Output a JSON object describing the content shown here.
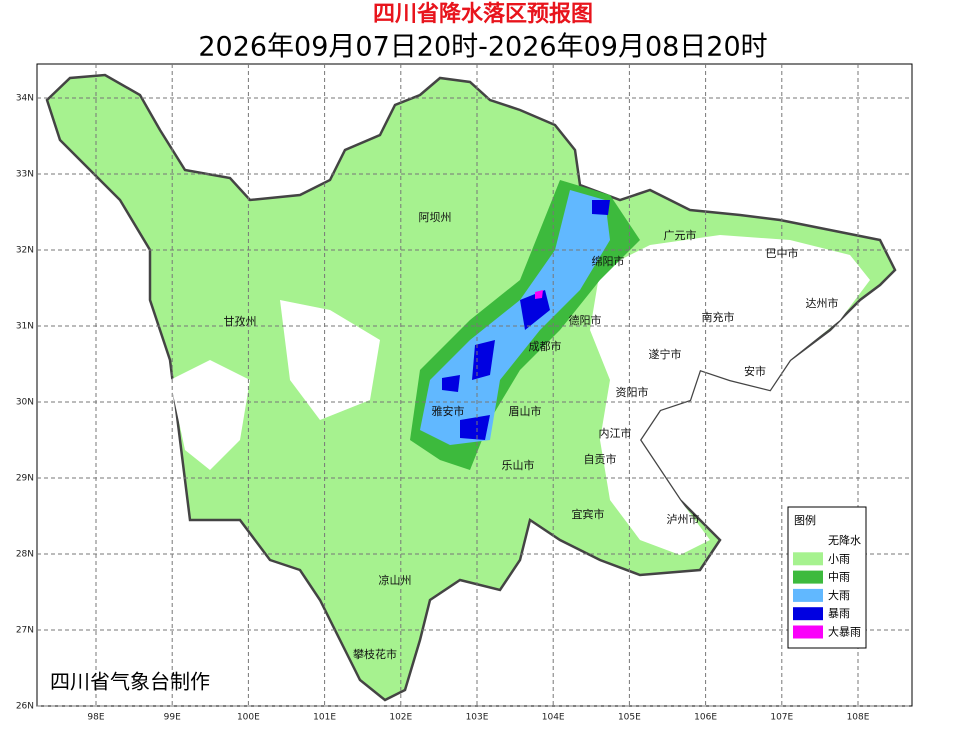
{
  "title": "四川省降水落区预报图",
  "subtitle": "2026年09月07日20时-2026年09月08日20时",
  "x_labels": [
    "98E",
    "99E",
    "100E",
    "101E",
    "102E",
    "103E",
    "104E",
    "105E",
    "106E",
    "107E",
    "108E"
  ],
  "y_labels": [
    "34N",
    "33N",
    "32N",
    "31N",
    "30N",
    "29N",
    "28N",
    "27N",
    "26N"
  ],
  "cities": [
    "阿坝州",
    "广元市",
    "巴中市",
    "绵阳市",
    "达州市",
    "甘孜州",
    "德阳市",
    "南充市",
    "成都市",
    "遂宁市",
    "安市",
    "资阳市",
    "雅安市",
    "眉山市",
    "内江市",
    "自贡市",
    "乐山市",
    "宜宾市",
    "泸州市",
    "凉山州",
    "攀枝花市"
  ],
  "legend": {
    "title": "图例",
    "items": [
      {
        "label": "无降水",
        "color": "#ffffff"
      },
      {
        "label": "小雨",
        "color": "#a6f28f"
      },
      {
        "label": "中雨",
        "color": "#3dba3d"
      },
      {
        "label": "大雨",
        "color": "#61b8ff"
      },
      {
        "label": "暴雨",
        "color": "#0000e1"
      },
      {
        "label": "大暴雨",
        "color": "#fa00fa"
      }
    ]
  },
  "credit": "四川省气象台制作"
}
